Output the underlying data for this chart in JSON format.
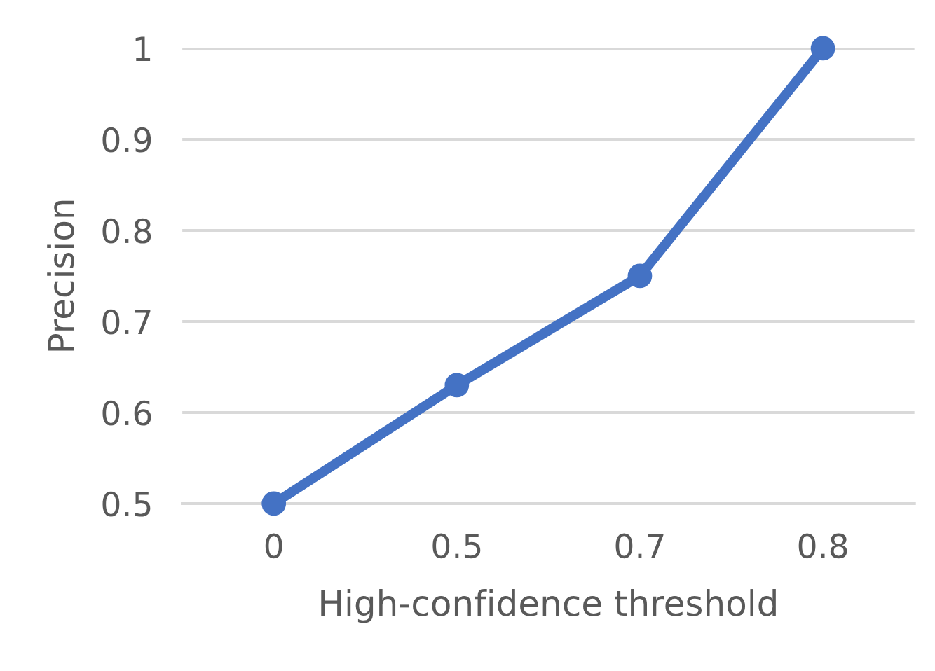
{
  "chart_data": {
    "type": "line",
    "xlabel": "High-confidence threshold",
    "ylabel": "Precision",
    "categories": [
      "0",
      "0.5",
      "0.7",
      "0.8"
    ],
    "series": [
      {
        "color": "#4472c4",
        "values": [
          0.5,
          0.63,
          0.75,
          1.0
        ]
      }
    ],
    "ylim": [
      0.5,
      1
    ],
    "yticks": [
      {
        "value": 0.5,
        "label": "0.5"
      },
      {
        "value": 0.6,
        "label": "0.6"
      },
      {
        "value": 0.7,
        "label": "0.7"
      },
      {
        "value": 0.8,
        "label": "0.8"
      },
      {
        "value": 0.9,
        "label": "0.9"
      },
      {
        "value": 1,
        "label": "1"
      }
    ],
    "grid": "y",
    "marker": "circle",
    "line_style": "solid"
  }
}
